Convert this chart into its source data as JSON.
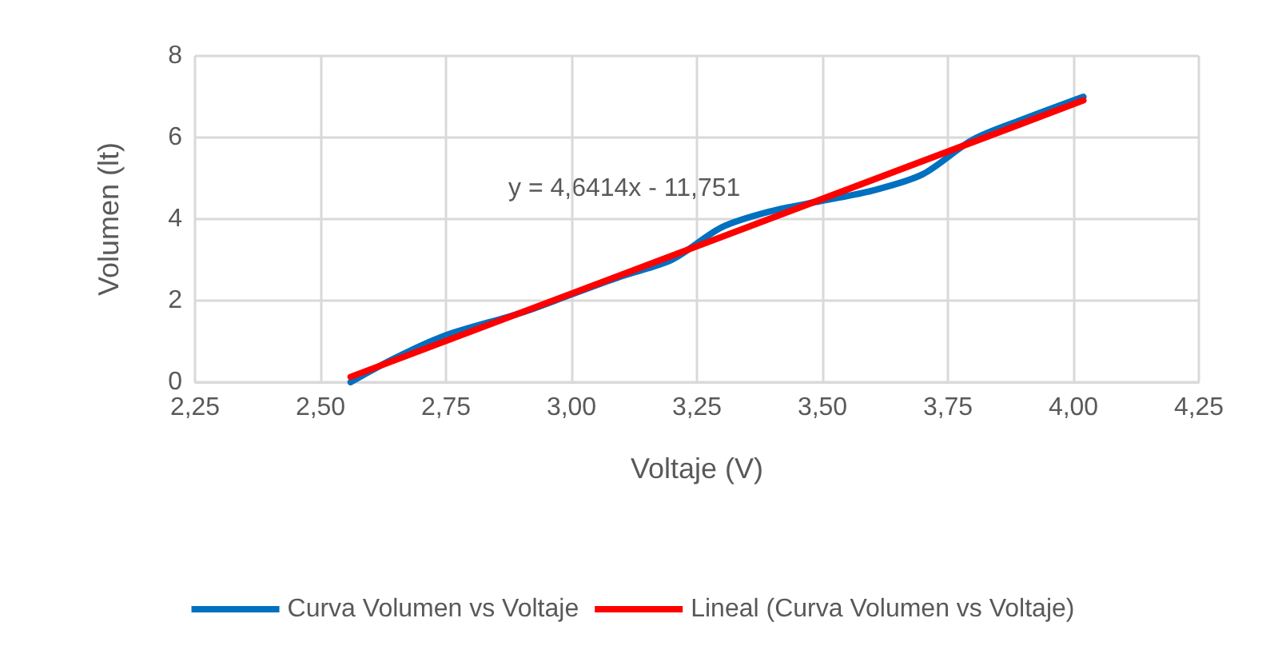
{
  "chart_data": {
    "type": "line",
    "xlabel": "Voltaje (V)",
    "ylabel": "Volumen (lt)",
    "xlim": [
      2.25,
      4.25
    ],
    "xticks": [
      {
        "value": 2.25,
        "label": "2,25"
      },
      {
        "value": 2.5,
        "label": "2,50"
      },
      {
        "value": 2.75,
        "label": "2,75"
      },
      {
        "value": 3,
        "label": "3,00"
      },
      {
        "value": 3.25,
        "label": "3,25"
      },
      {
        "value": 3.5,
        "label": "3,50"
      },
      {
        "value": 3.75,
        "label": "3,75"
      },
      {
        "value": 4,
        "label": "4,00"
      },
      {
        "value": 4.25,
        "label": "4,25"
      }
    ],
    "ylim": [
      0,
      8
    ],
    "yticks": [
      0,
      2,
      4,
      6,
      8
    ],
    "grid": true,
    "legend": "bottom",
    "marker": "none",
    "line_style": "solid",
    "series": [
      {
        "name": "Curva Volumen vs Voltaje",
        "color": "#0070c0",
        "x": [
          2.56,
          2.65,
          2.75,
          2.9,
          3.0,
          3.1,
          3.2,
          3.3,
          3.4,
          3.5,
          3.6,
          3.7,
          3.8,
          3.9,
          4.02
        ],
        "values": [
          0,
          0.6,
          1.15,
          1.7,
          2.15,
          2.6,
          3.0,
          3.8,
          4.2,
          4.45,
          4.7,
          5.1,
          5.95,
          6.45,
          7.0
        ]
      },
      {
        "name": "Lineal (Curva Volumen vs Voltaje)",
        "color": "#ff0000",
        "x": [
          2.56,
          4.02
        ],
        "values": [
          0.13,
          6.91
        ]
      }
    ],
    "annotations": [
      "y = 4,6414x - 11,751"
    ]
  }
}
